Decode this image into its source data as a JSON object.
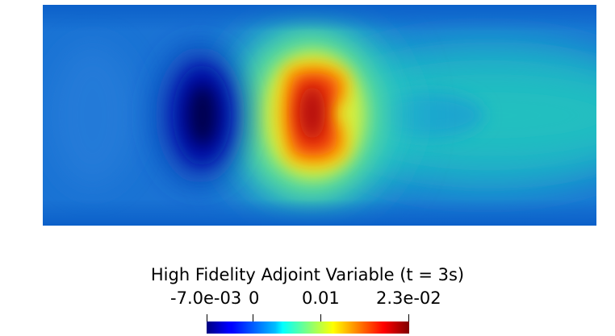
{
  "figure": {
    "field_name": "High Fidelity Adjoint Variable",
    "colorbar_title": "High Fidelity Adjoint Variable (t = 3s)",
    "time_label": "t = 3s"
  },
  "colorbar": {
    "colormap": "jet",
    "min": -0.007,
    "max": 0.023,
    "ticks": [
      {
        "value": -0.007,
        "label": "-7.0e-03"
      },
      {
        "value": 0.0,
        "label": "0"
      },
      {
        "value": 0.01,
        "label": "0.01"
      },
      {
        "value": 0.023,
        "label": "2.3e-02"
      }
    ],
    "colors": {
      "low": "#00007f",
      "mid_low": "#0080ff",
      "mid": "#7fff7f",
      "mid_high": "#ff8000",
      "high": "#7f0000"
    }
  },
  "field_features": {
    "background_value": 0.0,
    "negative_extreme": {
      "value": -0.007,
      "color": "#00004a"
    },
    "positive_extreme": {
      "value": 0.023,
      "color": "#b00000"
    },
    "wake_value": 0.006
  }
}
